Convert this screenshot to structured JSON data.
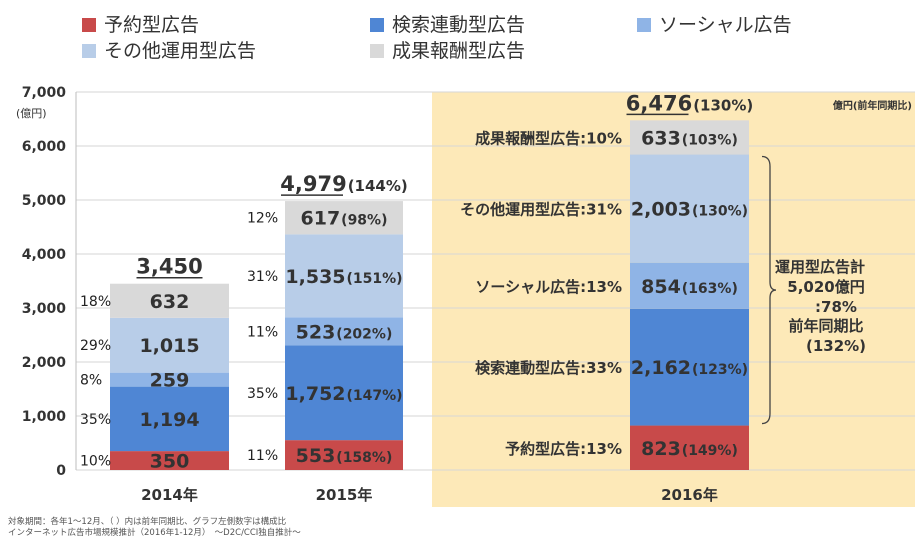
{
  "chart_data": {
    "type": "bar",
    "stacked": true,
    "categories": [
      "2014年",
      "2015年",
      "2016年"
    ],
    "y_unit_label": "(億円)",
    "ylim": [
      0,
      7000
    ],
    "y_ticks": [
      "0",
      "1,000",
      "2,000",
      "3,000",
      "4,000",
      "5,000",
      "6,000",
      "7,000"
    ],
    "y_tick_values": [
      0,
      1000,
      2000,
      3000,
      4000,
      5000,
      6000,
      7000
    ],
    "grid": true,
    "legend_position": "top",
    "highlight_category": "2016年",
    "highlight_color": "#fde9b8",
    "series": [
      {
        "name": "予約型広告",
        "color": "#c84a4a",
        "values": [
          350,
          553,
          823
        ],
        "labels": [
          "350",
          "553",
          "823"
        ],
        "growth": [
          "",
          "(158%)",
          "(149%)"
        ],
        "shares": [
          "10%",
          "11%",
          ""
        ]
      },
      {
        "name": "検索連動型広告",
        "color": "#4f86d4",
        "values": [
          1194,
          1752,
          2162
        ],
        "labels": [
          "1,194",
          "1,752",
          "2,162"
        ],
        "growth": [
          "",
          "(147%)",
          "(123%)"
        ],
        "shares": [
          "35%",
          "35%",
          ""
        ]
      },
      {
        "name": "ソーシャル広告",
        "color": "#8fb4e6",
        "values": [
          259,
          523,
          854
        ],
        "labels": [
          "259",
          "523",
          "854"
        ],
        "growth": [
          "",
          "(202%)",
          "(163%)"
        ],
        "shares": [
          "8%",
          "11%",
          ""
        ]
      },
      {
        "name": "その他運用型広告",
        "color": "#b8cde8",
        "values": [
          1015,
          1535,
          2003
        ],
        "labels": [
          "1,015",
          "1,535",
          "2,003"
        ],
        "growth": [
          "",
          "(151%)",
          "(130%)"
        ],
        "shares": [
          "29%",
          "31%",
          ""
        ]
      },
      {
        "name": "成果報酬型広告",
        "color": "#d9d9d9",
        "values": [
          632,
          617,
          633
        ],
        "labels": [
          "632",
          "617",
          "633"
        ],
        "growth": [
          "",
          "(98%)",
          "(103%)"
        ],
        "shares": [
          "18%",
          "12%",
          ""
        ]
      }
    ],
    "totals": [
      {
        "value": "3,450",
        "growth": ""
      },
      {
        "value": "4,979",
        "growth": "(144%)"
      },
      {
        "value": "6,476",
        "growth": "(130%)"
      }
    ],
    "right_labels_2016": [
      "予約型広告:13%",
      "検索連動型広告:33%",
      "ソーシャル広告:13%",
      "その他運用型広告:31%",
      "成果報酬型広告:10%"
    ],
    "unit_note_2016": "億円(前年同期比)",
    "bracket_annotation": [
      "運用型広告計",
      "5,020億円",
      ":78%",
      "前年同期比",
      "(132%)"
    ]
  },
  "footnotes": [
    "対象期間：各年1～12月、（ ）内は前年同期比、グラフ左側数字は構成比",
    "インターネット広告市場規模推計（2016年1-12月）　～D2C/CCI独自推計～"
  ]
}
